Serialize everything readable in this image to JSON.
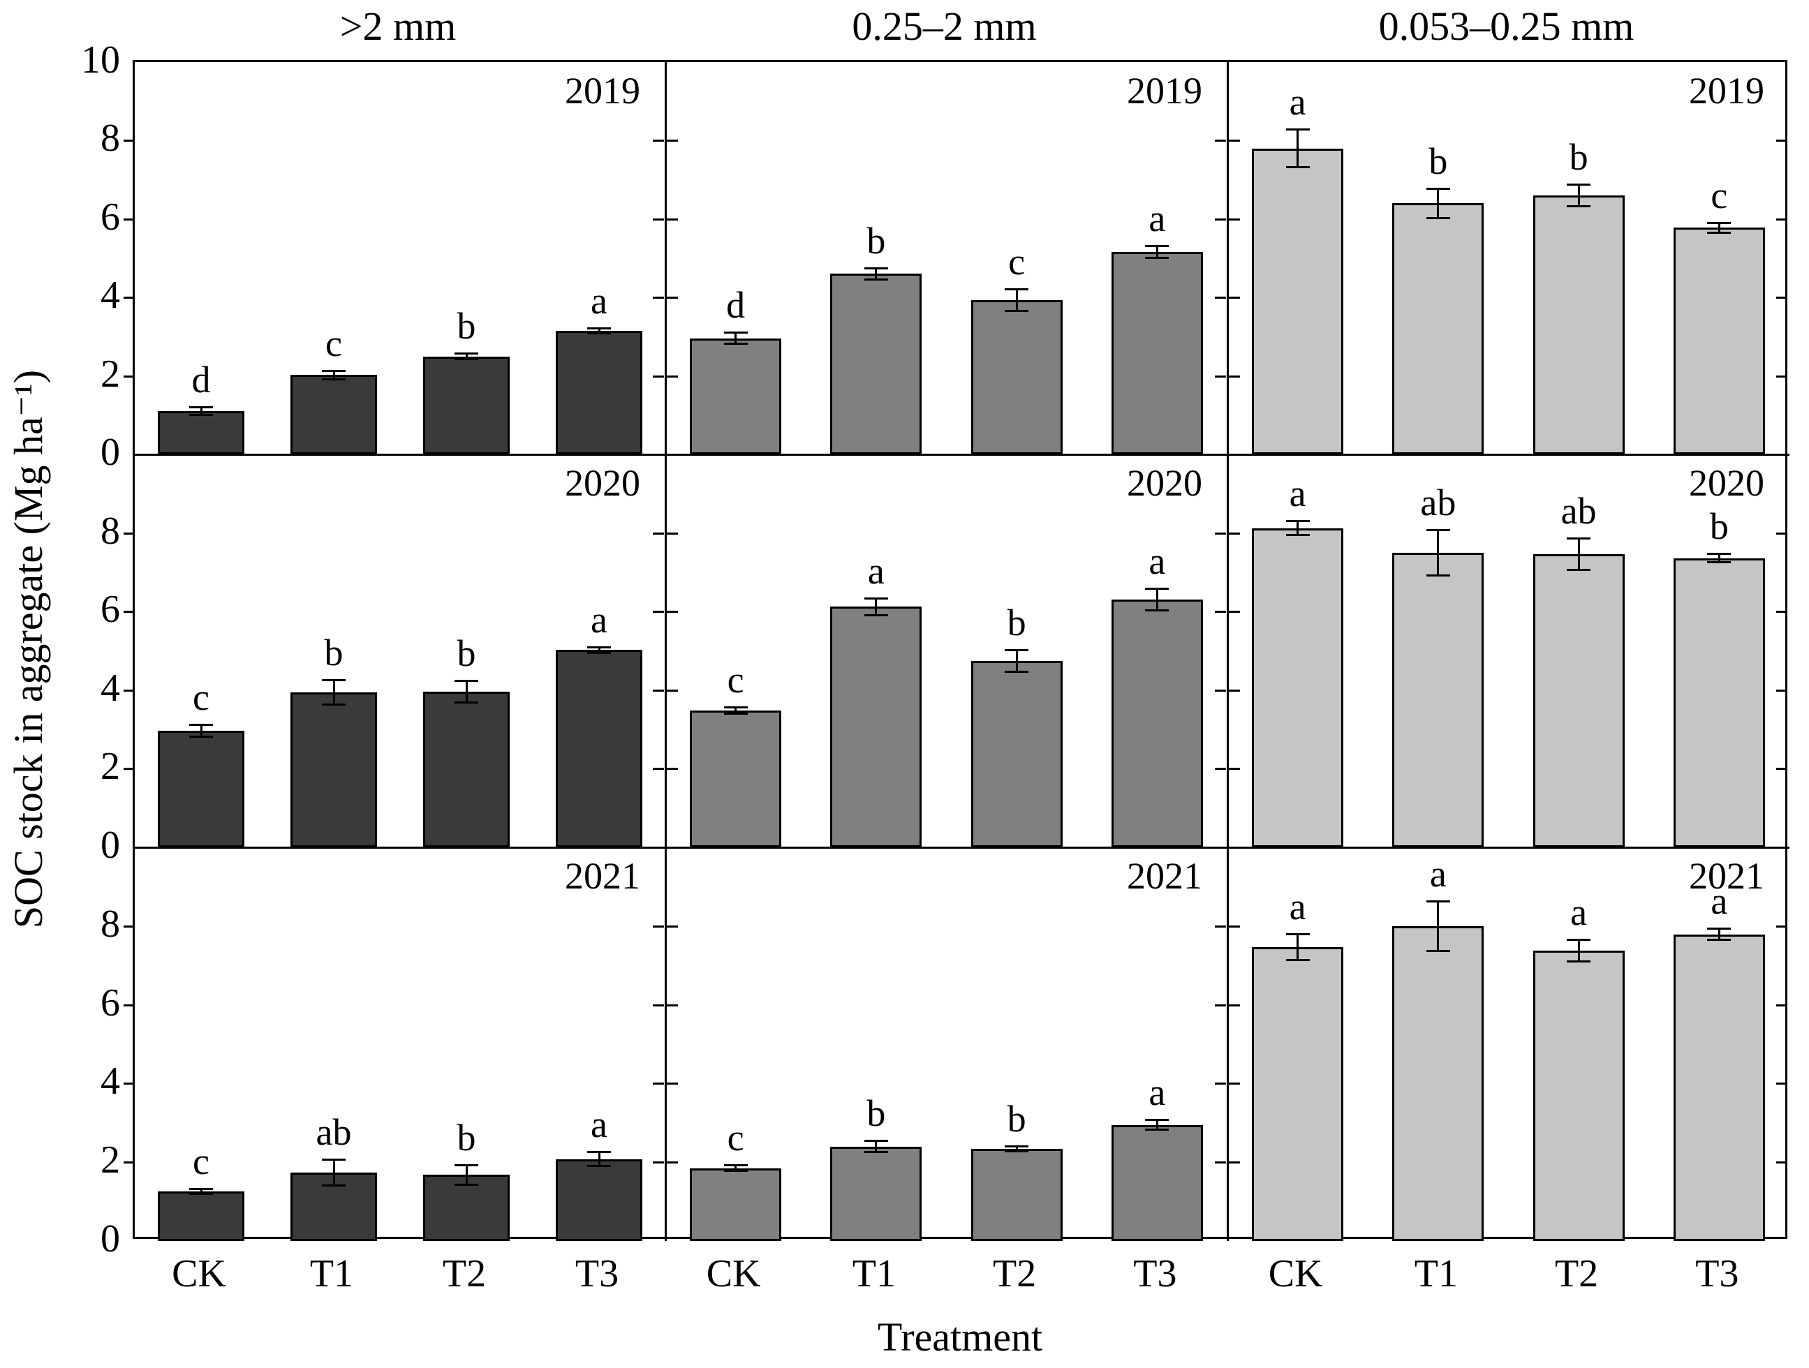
{
  "figure": {
    "background": "#ffffff",
    "line_color": "#000000"
  },
  "chart_data": {
    "type": "bar",
    "title": "",
    "xlabel": "Treatment",
    "ylabel": "SOC stock in aggregate (Mg ha⁻¹)",
    "categories": [
      "CK",
      "T1",
      "T2",
      "T3"
    ],
    "column_titles": [
      ">2 mm",
      "0.25–2 mm",
      "0.053–0.25 mm"
    ],
    "row_years": [
      "2019",
      "2020",
      "2021"
    ],
    "ylim": [
      0,
      10
    ],
    "grid": false,
    "legend": false,
    "error_bars": true,
    "yticks_rows": [
      [
        10,
        8,
        6,
        4,
        2,
        0
      ],
      [
        8,
        6,
        4,
        2,
        0
      ],
      [
        8,
        6,
        4,
        2,
        0
      ]
    ],
    "bar_colors": [
      "#3a3a3a",
      "#808080",
      "#c5c5c5"
    ],
    "panels": [
      {
        "year": "2019",
        "size": ">2 mm",
        "slug": "gt-2mm",
        "row": 0,
        "col": 0,
        "color": "#3a3a3a",
        "values": [
          1.1,
          2.02,
          2.5,
          3.15
        ],
        "errors": [
          0.07,
          0.08,
          0.05,
          0.04
        ],
        "letters": [
          "d",
          "c",
          "b",
          "a"
        ]
      },
      {
        "year": "2019",
        "size": "0.25–2 mm",
        "slug": "0p25-2mm",
        "row": 0,
        "col": 1,
        "color": "#808080",
        "values": [
          2.96,
          4.6,
          3.93,
          5.16
        ],
        "errors": [
          0.12,
          0.12,
          0.25,
          0.13
        ],
        "letters": [
          "d",
          "b",
          "c",
          "a"
        ]
      },
      {
        "year": "2019",
        "size": "0.053–0.25 mm",
        "slug": "0p053-0p25mm",
        "row": 0,
        "col": 2,
        "color": "#c5c5c5",
        "values": [
          7.8,
          6.4,
          6.6,
          5.78
        ],
        "errors": [
          0.45,
          0.35,
          0.25,
          0.1
        ],
        "letters": [
          "a",
          "b",
          "b",
          "c"
        ]
      },
      {
        "year": "2020",
        "size": ">2 mm",
        "slug": "gt-2mm",
        "row": 1,
        "col": 0,
        "color": "#3a3a3a",
        "values": [
          2.97,
          3.94,
          3.96,
          5.02
        ],
        "errors": [
          0.12,
          0.28,
          0.25,
          0.05
        ],
        "letters": [
          "c",
          "b",
          "b",
          "a"
        ]
      },
      {
        "year": "2020",
        "size": "0.25–2 mm",
        "slug": "0p25-2mm",
        "row": 1,
        "col": 1,
        "color": "#808080",
        "values": [
          3.48,
          6.12,
          4.75,
          6.3
        ],
        "errors": [
          0.05,
          0.18,
          0.25,
          0.25
        ],
        "letters": [
          "c",
          "a",
          "b",
          "a"
        ]
      },
      {
        "year": "2020",
        "size": "0.053–0.25 mm",
        "slug": "0p053-0p25mm",
        "row": 1,
        "col": 2,
        "color": "#c5c5c5",
        "values": [
          8.12,
          7.5,
          7.46,
          7.36
        ],
        "errors": [
          0.15,
          0.55,
          0.38,
          0.08
        ],
        "letters": [
          "a",
          "ab",
          "ab",
          "b"
        ]
      },
      {
        "year": "2021",
        "size": ">2 mm",
        "slug": "gt-2mm",
        "row": 2,
        "col": 0,
        "color": "#3a3a3a",
        "values": [
          1.26,
          1.74,
          1.68,
          2.08
        ],
        "errors": [
          0.04,
          0.3,
          0.22,
          0.15
        ],
        "letters": [
          "c",
          "ab",
          "b",
          "a"
        ]
      },
      {
        "year": "2021",
        "size": "0.25–2 mm",
        "slug": "0p25-2mm",
        "row": 2,
        "col": 1,
        "color": "#808080",
        "values": [
          1.85,
          2.4,
          2.34,
          2.95
        ],
        "errors": [
          0.05,
          0.12,
          0.04,
          0.1
        ],
        "letters": [
          "c",
          "b",
          "b",
          "a"
        ]
      },
      {
        "year": "2021",
        "size": "0.053–0.25 mm",
        "slug": "0p053-0p25mm",
        "row": 2,
        "col": 2,
        "color": "#c5c5c5",
        "values": [
          7.46,
          8.0,
          7.38,
          7.79
        ],
        "errors": [
          0.3,
          0.6,
          0.25,
          0.12
        ],
        "letters": [
          "a",
          "a",
          "a",
          "a"
        ]
      }
    ]
  }
}
